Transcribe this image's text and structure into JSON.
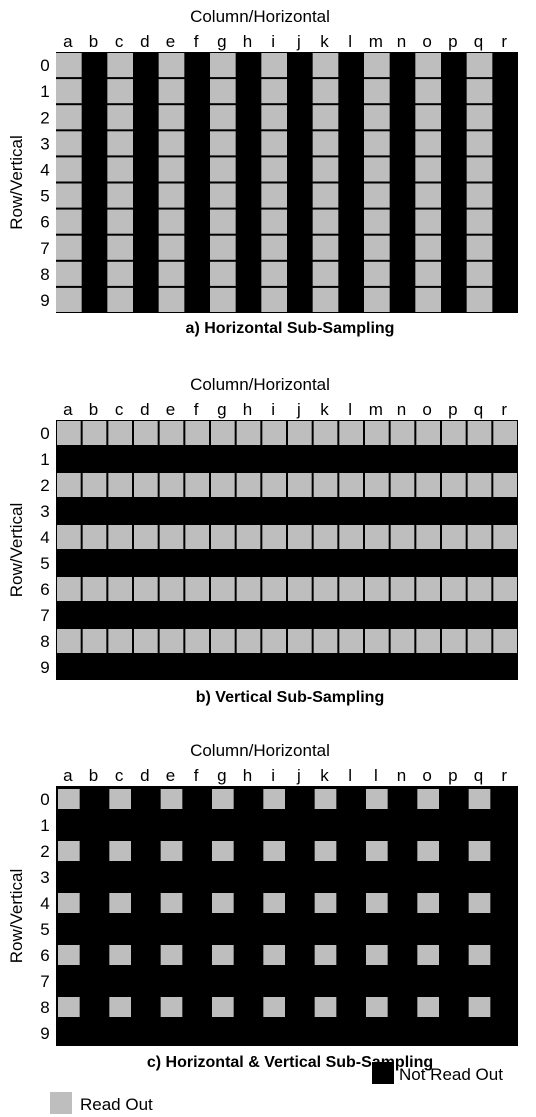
{
  "colors": {
    "read_out": "#bebebe",
    "not_read_out": "#000000",
    "divider": "#ffffff"
  },
  "panels": [
    {
      "id": "horizontal",
      "column_title": "Column/Horizontal",
      "row_title": "Row/Vertical",
      "columns": [
        "a",
        "b",
        "c",
        "d",
        "e",
        "f",
        "g",
        "h",
        "i",
        "j",
        "k",
        "l",
        "m",
        "n",
        "o",
        "p",
        "q",
        "r"
      ],
      "rows": [
        "0",
        "1",
        "2",
        "3",
        "4",
        "5",
        "6",
        "7",
        "8",
        "9"
      ],
      "caption": "a) Horizontal Sub-Sampling",
      "pattern": "horizontal"
    },
    {
      "id": "vertical",
      "column_title": "Column/Horizontal",
      "row_title": "Row/Vertical",
      "columns": [
        "a",
        "b",
        "c",
        "d",
        "e",
        "f",
        "g",
        "h",
        "i",
        "j",
        "k",
        "l",
        "m",
        "n",
        "o",
        "p",
        "q",
        "r"
      ],
      "rows": [
        "0",
        "1",
        "2",
        "3",
        "4",
        "5",
        "6",
        "7",
        "8",
        "9"
      ],
      "caption": "b) Vertical Sub-Sampling",
      "pattern": "vertical"
    },
    {
      "id": "both",
      "column_title": "Column/Horizontal",
      "row_title": "Row/Vertical",
      "columns": [
        "a",
        "b",
        "c",
        "d",
        "e",
        "f",
        "g",
        "h",
        "i",
        "j",
        "k",
        "l",
        "l",
        "n",
        "o",
        "p",
        "q",
        "r"
      ],
      "rows": [
        "0",
        "1",
        "2",
        "3",
        "4",
        "5",
        "6",
        "7",
        "8",
        "9"
      ],
      "caption": "c) Horizontal & Vertical Sub-Sampling",
      "pattern": "both"
    }
  ],
  "legend": {
    "read_out": "Read Out",
    "not_read_out": "Not Read Out"
  }
}
